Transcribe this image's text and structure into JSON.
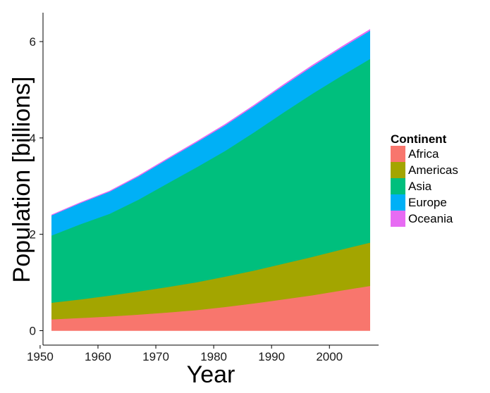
{
  "chart_data": {
    "type": "area",
    "stacked": true,
    "xlabel": "Year",
    "ylabel": "Population [billions]",
    "xlim": [
      1950.5,
      2008.5
    ],
    "ylim": [
      -0.3,
      6.6
    ],
    "x_ticks": [
      1950,
      1960,
      1970,
      1980,
      1990,
      2000
    ],
    "y_ticks": [
      0,
      2,
      4,
      6
    ],
    "grid": false,
    "legend": {
      "title": "Continent",
      "position": "right"
    },
    "x": [
      1952,
      1957,
      1962,
      1967,
      1972,
      1977,
      1982,
      1987,
      1992,
      1997,
      2002,
      2007
    ],
    "series": [
      {
        "name": "Africa",
        "color": "#F8766D",
        "values": [
          0.237,
          0.265,
          0.296,
          0.335,
          0.378,
          0.428,
          0.494,
          0.568,
          0.651,
          0.735,
          0.834,
          0.93
        ]
      },
      {
        "name": "Americas",
        "color": "#A3A500",
        "values": [
          0.345,
          0.386,
          0.433,
          0.481,
          0.529,
          0.578,
          0.63,
          0.682,
          0.74,
          0.797,
          0.85,
          0.899
        ]
      },
      {
        "name": "Asia",
        "color": "#00BF7D",
        "values": [
          1.395,
          1.562,
          1.697,
          1.905,
          2.15,
          2.384,
          2.611,
          2.871,
          3.133,
          3.383,
          3.601,
          3.812
        ]
      },
      {
        "name": "Europe",
        "color": "#00B0F6",
        "values": [
          0.418,
          0.438,
          0.46,
          0.481,
          0.5,
          0.517,
          0.532,
          0.543,
          0.558,
          0.568,
          0.578,
          0.586
        ]
      },
      {
        "name": "Oceania",
        "color": "#E76BF3",
        "values": [
          0.011,
          0.012,
          0.014,
          0.015,
          0.017,
          0.018,
          0.019,
          0.021,
          0.022,
          0.024,
          0.025,
          0.026
        ]
      }
    ]
  }
}
